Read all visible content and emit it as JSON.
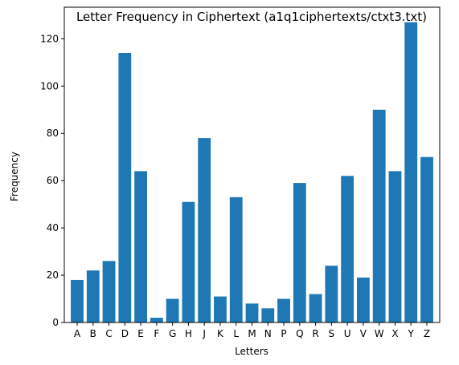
{
  "chart_data": {
    "type": "bar",
    "title": "Letter Frequency in Ciphertext (a1q1ciphertexts/ctxt3.txt)",
    "xlabel": "Letters",
    "ylabel": "Frequency",
    "categories": [
      "A",
      "B",
      "C",
      "D",
      "E",
      "F",
      "G",
      "H",
      "J",
      "K",
      "L",
      "M",
      "N",
      "P",
      "Q",
      "R",
      "S",
      "U",
      "V",
      "W",
      "X",
      "Y",
      "Z"
    ],
    "values": [
      18,
      22,
      26,
      114,
      64,
      2,
      10,
      51,
      78,
      11,
      53,
      8,
      6,
      10,
      59,
      12,
      24,
      62,
      19,
      90,
      64,
      127,
      70
    ],
    "ylim": [
      0,
      133.35
    ],
    "yticks": [
      0,
      20,
      40,
      60,
      80,
      100,
      120
    ],
    "grid": false,
    "bar_color": "#1f77b4"
  }
}
